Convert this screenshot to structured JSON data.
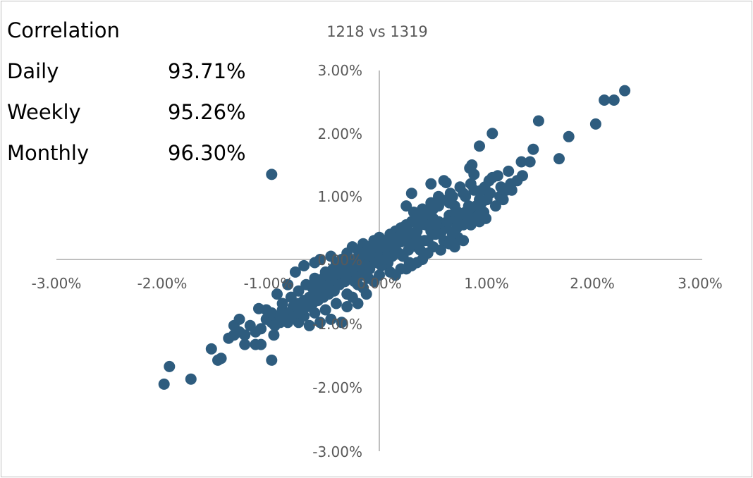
{
  "correlation": {
    "heading": "Correlation",
    "rows": [
      {
        "label": "Daily",
        "value": "93.71%"
      },
      {
        "label": "Weekly",
        "value": "95.26%"
      },
      {
        "label": "Monthly",
        "value": "96.30%"
      }
    ]
  },
  "colors": {
    "point": "#2e5c7e",
    "axis": "#bfbfbf",
    "tick_text": "#595959",
    "border": "#bfbfbf"
  },
  "chart_data": {
    "type": "scatter",
    "title": "1218 vs 1319",
    "xlabel": "",
    "ylabel": "",
    "xlim": [
      -3,
      3
    ],
    "ylim": [
      -3,
      3
    ],
    "grid": false,
    "legend": "none",
    "x_ticks": [
      "-3.00%",
      "-2.00%",
      "-1.00%",
      "0.00%",
      "1.00%",
      "2.00%",
      "3.00%"
    ],
    "y_ticks": [
      "3.00%",
      "2.00%",
      "1.00%",
      "0.00%",
      "-1.00%",
      "-2.00%",
      "-3.00%"
    ],
    "y_tick_values": [
      3,
      2,
      1,
      0,
      -1,
      -2,
      -3
    ],
    "series": [
      {
        "points": [
          [
            2.28,
            2.68
          ],
          [
            2.18,
            2.53
          ],
          [
            2.09,
            2.53
          ],
          [
            2.01,
            2.15
          ],
          [
            1.76,
            1.95
          ],
          [
            1.67,
            1.6
          ],
          [
            1.48,
            2.2
          ],
          [
            1.43,
            1.75
          ],
          [
            1.4,
            1.55
          ],
          [
            1.33,
            1.33
          ],
          [
            1.32,
            1.55
          ],
          [
            1.28,
            1.25
          ],
          [
            1.22,
            1.2
          ],
          [
            1.2,
            1.4
          ],
          [
            1.1,
            1.33
          ],
          [
            1.05,
            1.3
          ],
          [
            1.02,
            1.25
          ],
          [
            0.95,
            1.1
          ],
          [
            0.88,
            1.35
          ],
          [
            0.85,
            1.2
          ],
          [
            1.05,
            2.0
          ],
          [
            0.93,
            1.8
          ],
          [
            0.86,
            1.5
          ],
          [
            0.84,
            1.45
          ],
          [
            0.8,
            1.0
          ],
          [
            0.75,
            1.15
          ],
          [
            0.7,
            0.85
          ],
          [
            0.65,
            0.9
          ],
          [
            0.99,
            0.65
          ],
          [
            0.93,
            0.6
          ],
          [
            0.85,
            0.55
          ],
          [
            0.73,
            0.35
          ],
          [
            0.6,
            1.25
          ],
          [
            0.66,
            1.05
          ],
          [
            0.62,
            1.22
          ],
          [
            0.55,
            1.0
          ],
          [
            0.5,
            0.8
          ],
          [
            0.48,
            1.2
          ],
          [
            0.3,
            1.05
          ],
          [
            0.25,
            0.85
          ],
          [
            0.45,
            0.6
          ],
          [
            0.42,
            0.7
          ],
          [
            0.38,
            0.55
          ],
          [
            0.33,
            0.4
          ],
          [
            0.35,
            0.2
          ],
          [
            0.3,
            0.35
          ],
          [
            0.25,
            0.3
          ],
          [
            0.2,
            0.28
          ],
          [
            0.15,
            0.2
          ],
          [
            0.1,
            0.15
          ],
          [
            0.05,
            0.1
          ],
          [
            0.0,
            0.05
          ],
          [
            -0.05,
            0.05
          ],
          [
            -0.1,
            0.0
          ],
          [
            -0.15,
            -0.05
          ],
          [
            -0.2,
            -0.1
          ],
          [
            -0.25,
            -0.15
          ],
          [
            -0.3,
            -0.2
          ],
          [
            -0.35,
            -0.25
          ],
          [
            -0.4,
            -0.3
          ],
          [
            -0.45,
            -0.35
          ],
          [
            -0.5,
            -0.4
          ],
          [
            -0.55,
            -0.45
          ],
          [
            -0.6,
            -0.55
          ],
          [
            -0.65,
            -0.6
          ],
          [
            -0.7,
            -0.65
          ],
          [
            -0.75,
            -0.7
          ],
          [
            -0.8,
            -0.75
          ],
          [
            -0.85,
            -0.85
          ],
          [
            -0.9,
            -0.8
          ],
          [
            -0.95,
            -0.9
          ],
          [
            -1.0,
            -1.0
          ],
          [
            -1.05,
            -0.95
          ],
          [
            -1.1,
            -1.1
          ],
          [
            -1.15,
            -1.15
          ],
          [
            -1.2,
            -1.05
          ],
          [
            -1.25,
            -1.2
          ],
          [
            -1.3,
            -1.15
          ],
          [
            -1.35,
            -1.2
          ],
          [
            -1.4,
            -1.25
          ],
          [
            -1.1,
            -1.35
          ],
          [
            -1.15,
            -1.35
          ],
          [
            -1.25,
            -1.35
          ],
          [
            -0.98,
            -1.2
          ],
          [
            -1.0,
            -1.6
          ],
          [
            -1.0,
            1.35
          ],
          [
            -1.56,
            -1.42
          ],
          [
            -1.47,
            -1.57
          ],
          [
            -1.5,
            -1.6
          ],
          [
            -1.75,
            -1.9
          ],
          [
            -1.95,
            -1.7
          ],
          [
            -2.0,
            -1.98
          ],
          [
            -1.35,
            -1.05
          ],
          [
            -1.3,
            -0.95
          ],
          [
            -1.12,
            -0.78
          ],
          [
            -1.05,
            -0.8
          ],
          [
            -0.95,
            -0.55
          ],
          [
            -0.85,
            -0.4
          ],
          [
            -0.78,
            -0.2
          ],
          [
            -0.7,
            -0.1
          ],
          [
            -0.6,
            -0.05
          ],
          [
            -0.55,
            0.0
          ],
          [
            -0.5,
            -0.2
          ],
          [
            -0.45,
            0.05
          ],
          [
            -0.4,
            -0.05
          ],
          [
            -0.35,
            0.0
          ],
          [
            -0.3,
            0.1
          ],
          [
            -0.25,
            0.2
          ],
          [
            -0.2,
            0.15
          ],
          [
            -0.15,
            0.25
          ],
          [
            -0.1,
            0.2
          ],
          [
            -0.05,
            0.3
          ],
          [
            0.0,
            0.35
          ],
          [
            0.05,
            0.3
          ],
          [
            0.1,
            0.4
          ],
          [
            0.15,
            0.45
          ],
          [
            0.2,
            0.5
          ],
          [
            0.25,
            0.55
          ],
          [
            0.3,
            0.6
          ],
          [
            0.35,
            0.65
          ],
          [
            0.4,
            0.7
          ],
          [
            0.45,
            0.75
          ],
          [
            0.5,
            0.65
          ],
          [
            0.55,
            0.6
          ],
          [
            0.6,
            0.55
          ],
          [
            0.65,
            0.7
          ],
          [
            0.7,
            0.6
          ],
          [
            0.75,
            0.65
          ],
          [
            0.8,
            0.75
          ],
          [
            0.85,
            0.8
          ],
          [
            0.9,
            0.85
          ],
          [
            0.95,
            0.9
          ],
          [
            1.0,
            0.95
          ],
          [
            0.6,
            0.3
          ],
          [
            0.5,
            0.2
          ],
          [
            0.45,
            0.1
          ],
          [
            0.4,
            0.0
          ],
          [
            0.35,
            -0.05
          ],
          [
            0.3,
            -0.1
          ],
          [
            0.2,
            -0.15
          ],
          [
            0.1,
            -0.2
          ],
          [
            0.0,
            -0.25
          ],
          [
            -0.1,
            -0.3
          ],
          [
            -0.2,
            -0.4
          ],
          [
            -0.3,
            -0.55
          ],
          [
            -0.4,
            -0.7
          ],
          [
            -0.5,
            -0.8
          ],
          [
            -0.6,
            -0.85
          ],
          [
            -0.3,
            -0.75
          ],
          [
            -0.35,
            -1.0
          ],
          [
            -0.45,
            -0.95
          ],
          [
            -0.55,
            -1.0
          ],
          [
            -0.65,
            -1.05
          ],
          [
            -0.75,
            -1.0
          ],
          [
            -0.85,
            -1.0
          ],
          [
            -0.7,
            -0.9
          ],
          [
            0.28,
            -0.05
          ],
          [
            0.22,
            0.05
          ],
          [
            0.18,
            0.1
          ],
          [
            0.12,
            0.05
          ],
          [
            0.08,
            -0.05
          ],
          [
            0.02,
            -0.1
          ],
          [
            -0.02,
            0.1
          ],
          [
            0.38,
            0.15
          ],
          [
            0.42,
            0.3
          ],
          [
            0.48,
            0.45
          ],
          [
            0.52,
            0.4
          ],
          [
            0.58,
            0.45
          ],
          [
            0.62,
            0.5
          ],
          [
            0.68,
            0.4
          ],
          [
            0.72,
            0.5
          ],
          [
            0.78,
            0.55
          ],
          [
            0.82,
            0.6
          ],
          [
            0.88,
            0.65
          ],
          [
            0.92,
            0.7
          ],
          [
            0.97,
            0.75
          ],
          [
            1.08,
            0.85
          ],
          [
            1.12,
            1.0
          ],
          [
            1.15,
            0.95
          ],
          [
            1.18,
            1.1
          ],
          [
            0.55,
            0.85
          ],
          [
            0.48,
            0.9
          ],
          [
            0.4,
            0.8
          ],
          [
            0.32,
            0.75
          ],
          [
            0.27,
            0.45
          ],
          [
            0.23,
            0.4
          ],
          [
            0.17,
            0.35
          ],
          [
            0.13,
            0.3
          ],
          [
            0.07,
            0.25
          ],
          [
            -0.07,
            -0.05
          ],
          [
            -0.12,
            -0.1
          ],
          [
            -0.17,
            -0.2
          ],
          [
            -0.22,
            -0.25
          ],
          [
            -0.27,
            -0.3
          ],
          [
            -0.32,
            -0.35
          ],
          [
            -0.37,
            -0.4
          ],
          [
            -0.42,
            -0.5
          ],
          [
            -0.47,
            -0.55
          ],
          [
            -0.52,
            -0.6
          ],
          [
            -0.57,
            -0.65
          ],
          [
            -0.62,
            -0.7
          ],
          [
            -0.67,
            -0.75
          ],
          [
            -0.72,
            -0.8
          ],
          [
            -0.77,
            -0.85
          ],
          [
            -0.82,
            -0.9
          ],
          [
            -0.87,
            -0.95
          ],
          [
            -0.92,
            -1.0
          ],
          [
            -0.97,
            -1.05
          ],
          [
            -0.62,
            -0.45
          ],
          [
            -0.57,
            -0.35
          ],
          [
            -0.52,
            -0.3
          ],
          [
            -0.48,
            -0.25
          ],
          [
            -0.43,
            -0.15
          ],
          [
            -0.38,
            -0.1
          ],
          [
            -0.33,
            -0.15
          ],
          [
            -0.28,
            -0.05
          ],
          [
            -0.23,
            0.0
          ],
          [
            -0.18,
            0.05
          ],
          [
            -0.13,
            0.1
          ],
          [
            -0.08,
            0.15
          ],
          [
            -0.03,
            0.2
          ],
          [
            0.03,
            0.2
          ],
          [
            0.57,
            0.15
          ],
          [
            0.65,
            0.25
          ],
          [
            0.7,
            0.2
          ],
          [
            0.78,
            0.3
          ],
          [
            0.25,
            -0.15
          ],
          [
            0.15,
            -0.25
          ],
          [
            -0.05,
            -0.35
          ],
          [
            -0.15,
            -0.45
          ],
          [
            -0.25,
            -0.6
          ],
          [
            -0.12,
            -0.55
          ],
          [
            -0.2,
            -0.7
          ],
          [
            0.45,
            0.3
          ],
          [
            0.53,
            0.55
          ],
          [
            0.63,
            0.6
          ],
          [
            0.73,
            0.75
          ],
          [
            0.83,
            0.85
          ],
          [
            0.93,
            0.95
          ],
          [
            1.03,
            1.05
          ],
          [
            1.13,
            1.15
          ],
          [
            1.23,
            1.1
          ],
          [
            0.58,
            0.95
          ],
          [
            0.68,
            1.0
          ],
          [
            0.78,
            1.05
          ],
          [
            0.88,
            1.1
          ],
          [
            0.98,
            1.15
          ],
          [
            0.35,
            0.45
          ],
          [
            0.43,
            0.55
          ],
          [
            0.37,
            0.3
          ],
          [
            0.32,
            0.25
          ],
          [
            0.27,
            0.15
          ],
          [
            0.05,
            0.0
          ],
          [
            -0.02,
            -0.05
          ],
          [
            -0.09,
            -0.15
          ],
          [
            -0.16,
            -0.25
          ],
          [
            -0.23,
            -0.35
          ],
          [
            -0.6,
            -0.3
          ],
          [
            -0.68,
            -0.4
          ],
          [
            -0.75,
            -0.5
          ],
          [
            -0.82,
            -0.6
          ],
          [
            -0.9,
            -0.7
          ],
          [
            -1.0,
            -0.85
          ]
        ]
      }
    ]
  }
}
